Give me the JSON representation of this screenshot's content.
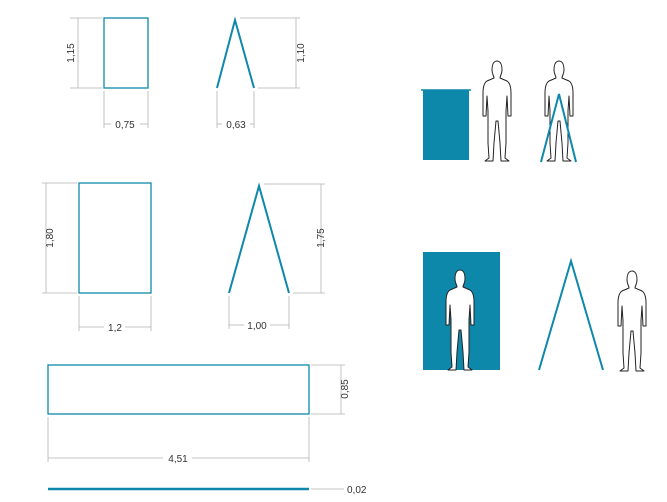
{
  "colors": {
    "accent": "#0e88aa",
    "dimension_line": "#b3b3b3",
    "text": "#333333",
    "silhouette_outline": "#222222",
    "silhouette_fill": "#ffffff"
  },
  "elements": {
    "panel_small": {
      "height": "1,15",
      "width": "0,75"
    },
    "aframe_small": {
      "height": "1,10",
      "width": "0,63"
    },
    "panel_large": {
      "height": "1,80",
      "width": "1,2"
    },
    "aframe_large": {
      "height": "1,75",
      "width": "1,00"
    },
    "banner": {
      "height": "0,85",
      "width": "4,51"
    },
    "thickness": {
      "value": "0,02"
    }
  }
}
